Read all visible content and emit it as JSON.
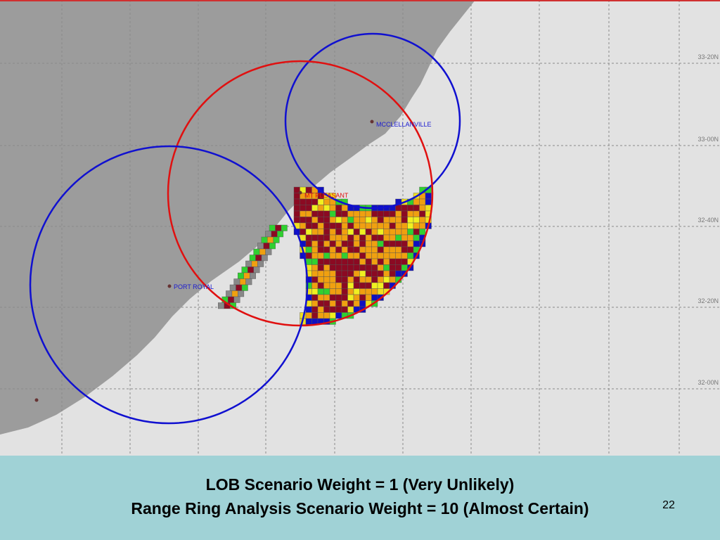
{
  "map": {
    "latitude_labels": [
      "33-20N",
      "33-00N",
      "32-40N",
      "32-20N",
      "32-00N"
    ],
    "places": [
      "MCCLELLANVILLE",
      "MT PLEASANT",
      "PORT ROYAL"
    ]
  },
  "caption": {
    "lines": [
      "LOB Scenario Weight = 1 (Very Unlikely)",
      "Range Ring Analysis Scenario Weight = 10 (Almost Certain)"
    ]
  },
  "page_number": "22"
}
